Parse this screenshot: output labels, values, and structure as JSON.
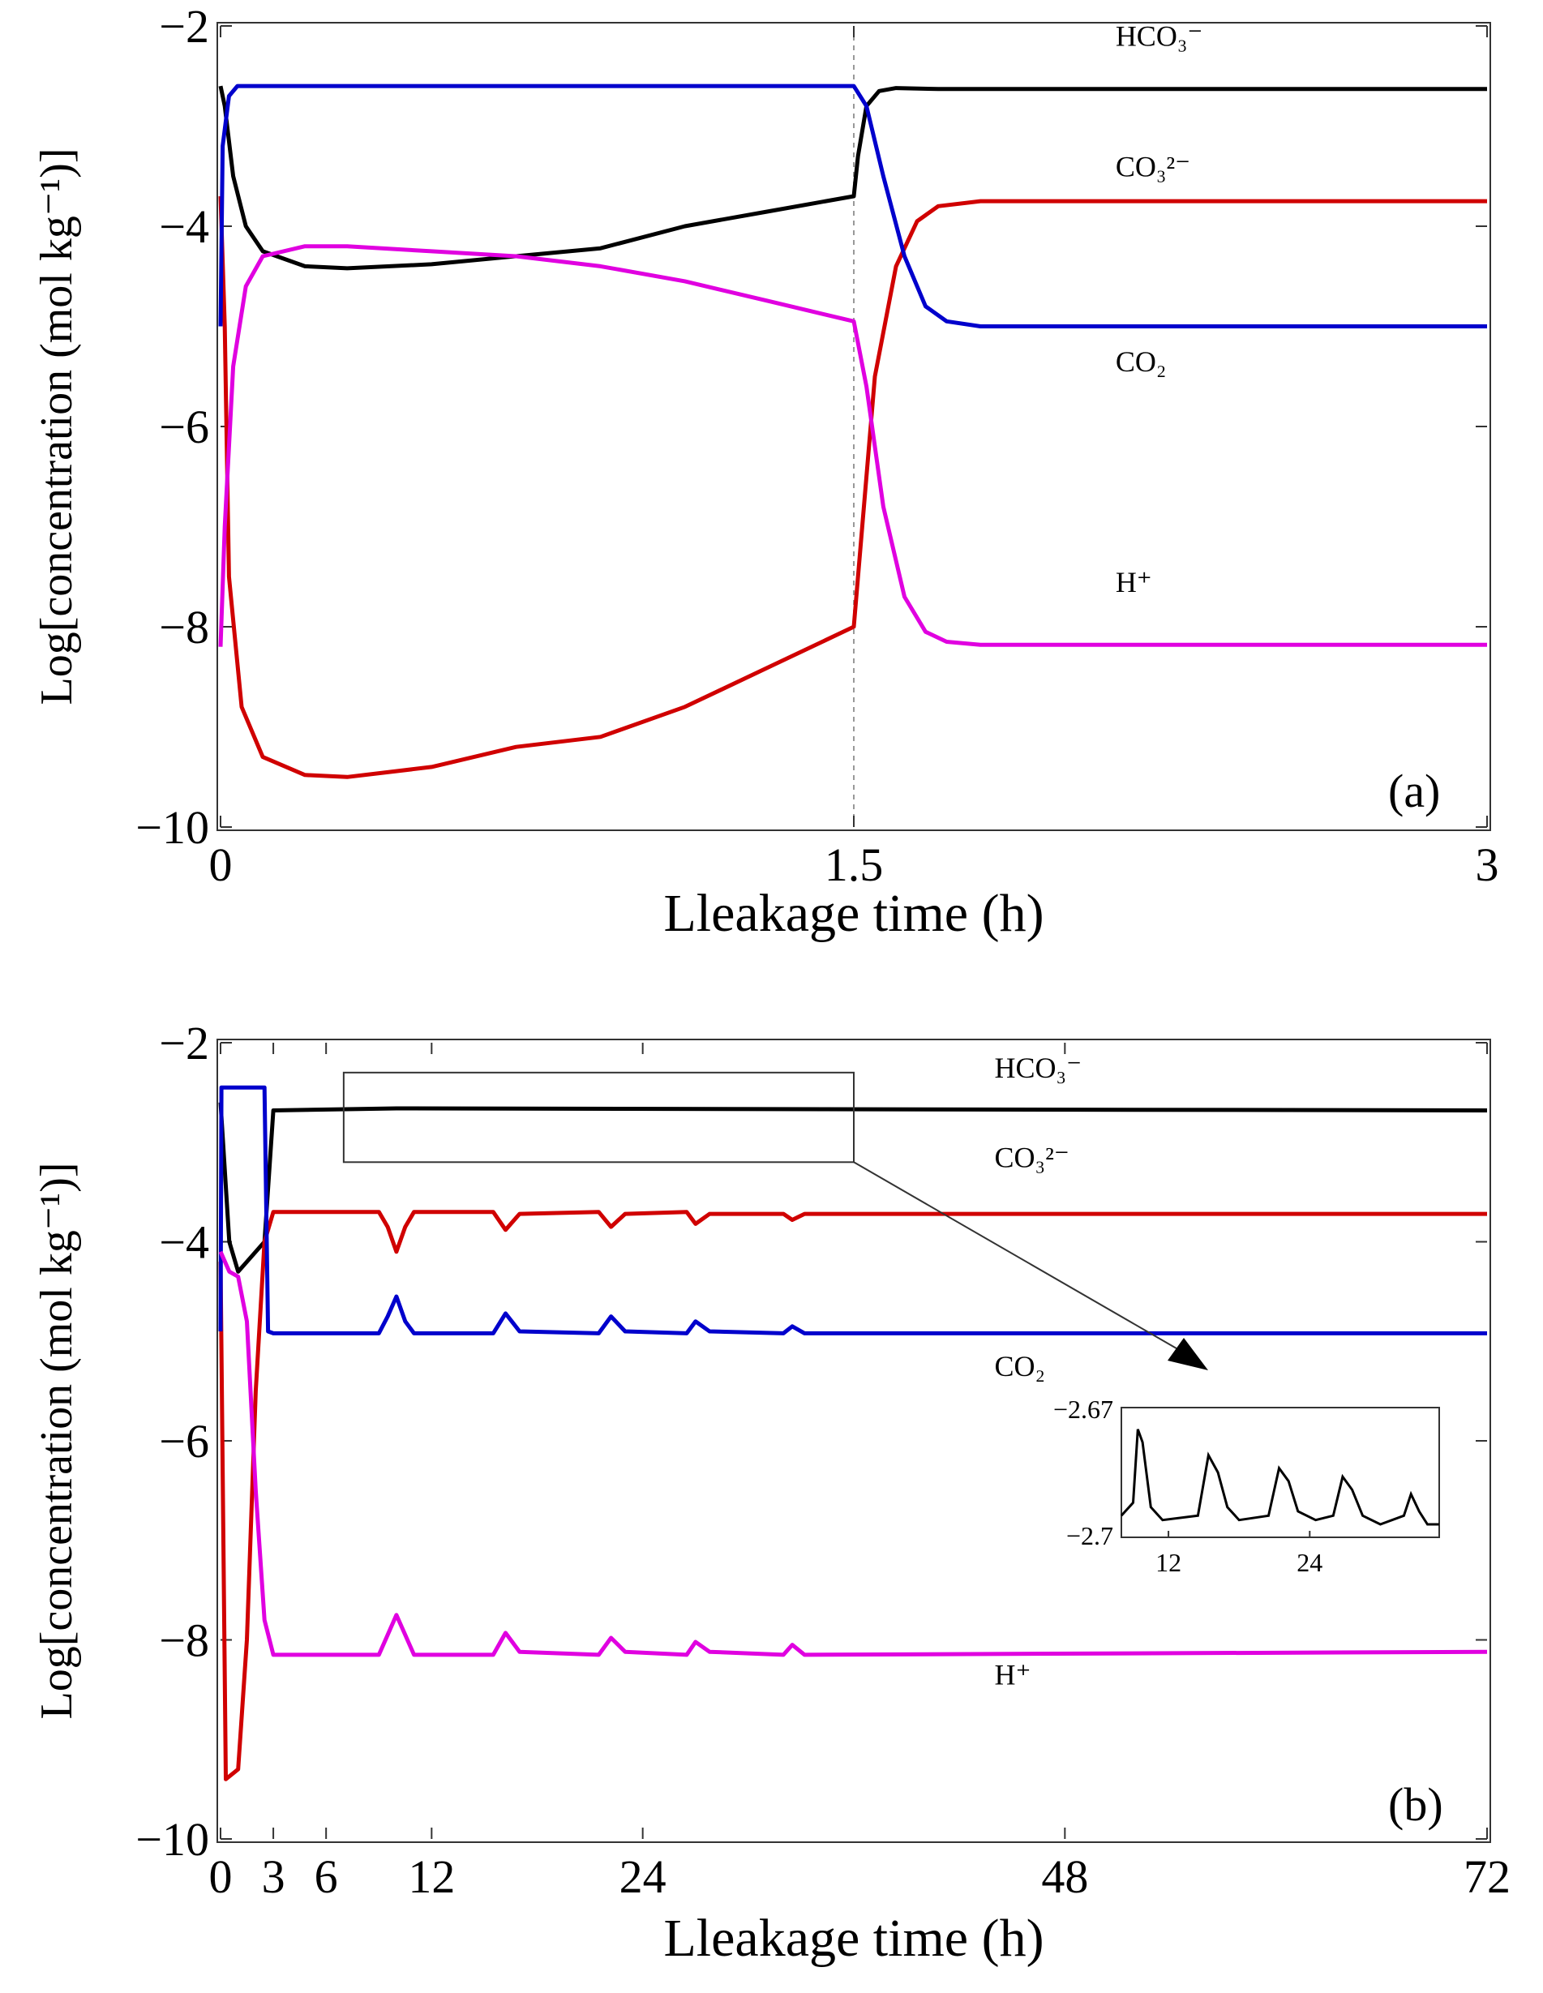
{
  "chart_data": [
    {
      "type": "line",
      "panel_label": "(a)",
      "xlabel": "Lleakage time (h)",
      "ylabel": "Log[concentration (mol kg⁻¹)]",
      "xlim": [
        0,
        3
      ],
      "ylim": [
        -10,
        -2
      ],
      "xticks": [
        "0",
        "1.5",
        "3"
      ],
      "yticks": [
        "-2",
        "-4",
        "-6",
        "-8",
        "-10"
      ],
      "vline_at": 1.5,
      "series": [
        {
          "name": "HCO3-",
          "label": "HCO₃⁻",
          "color": "#000000",
          "x": [
            0,
            0.01,
            0.03,
            0.06,
            0.1,
            0.2,
            0.3,
            0.5,
            0.7,
            0.9,
            1.1,
            1.3,
            1.5,
            1.51,
            1.53,
            1.56,
            1.6,
            1.7,
            2.0,
            2.5,
            3.0
          ],
          "y": [
            -2.6,
            -2.8,
            -3.5,
            -4.0,
            -4.25,
            -4.4,
            -4.42,
            -4.38,
            -4.3,
            -4.22,
            -4.0,
            -3.85,
            -3.7,
            -3.3,
            -2.8,
            -2.65,
            -2.62,
            -2.63,
            -2.63,
            -2.63,
            -2.63
          ]
        },
        {
          "name": "CO3 2-",
          "label": "CO₃²⁻",
          "color": "#d00000",
          "x": [
            0,
            0.01,
            0.02,
            0.05,
            0.1,
            0.2,
            0.3,
            0.5,
            0.7,
            0.9,
            1.1,
            1.3,
            1.5,
            1.52,
            1.55,
            1.6,
            1.65,
            1.7,
            1.8,
            2.0,
            2.5,
            3.0
          ],
          "y": [
            -3.7,
            -5.0,
            -7.5,
            -8.8,
            -9.3,
            -9.48,
            -9.5,
            -9.4,
            -9.2,
            -9.1,
            -8.8,
            -8.4,
            -8.0,
            -7.0,
            -5.5,
            -4.4,
            -3.95,
            -3.8,
            -3.75,
            -3.75,
            -3.75,
            -3.75
          ]
        },
        {
          "name": "CO2",
          "label": "CO₂",
          "color": "#0000cc",
          "x": [
            0,
            0.005,
            0.02,
            0.04,
            0.1,
            0.5,
            1.0,
            1.5,
            1.53,
            1.57,
            1.62,
            1.67,
            1.72,
            1.8,
            2.0,
            2.5,
            3.0
          ],
          "y": [
            -5.0,
            -3.2,
            -2.7,
            -2.6,
            -2.6,
            -2.6,
            -2.6,
            -2.6,
            -2.8,
            -3.5,
            -4.3,
            -4.8,
            -4.95,
            -5.0,
            -5.0,
            -5.0,
            -5.0
          ]
        },
        {
          "name": "H+",
          "label": "H⁺",
          "color": "#e000e0",
          "x": [
            0,
            0.01,
            0.03,
            0.06,
            0.1,
            0.2,
            0.3,
            0.5,
            0.7,
            0.9,
            1.1,
            1.3,
            1.5,
            1.53,
            1.57,
            1.62,
            1.67,
            1.72,
            1.8,
            2.0,
            2.5,
            3.0
          ],
          "y": [
            -8.2,
            -7.0,
            -5.4,
            -4.6,
            -4.3,
            -4.2,
            -4.2,
            -4.25,
            -4.3,
            -4.4,
            -4.55,
            -4.75,
            -4.95,
            -5.6,
            -6.8,
            -7.7,
            -8.05,
            -8.15,
            -8.18,
            -8.18,
            -8.18,
            -8.18
          ]
        }
      ],
      "annotations": [
        {
          "text": "HCO₃⁻",
          "x": 2.12,
          "y": -2.2
        },
        {
          "text": "CO₃²⁻",
          "x": 2.12,
          "y": -3.5
        },
        {
          "text": "CO₂",
          "x": 2.12,
          "y": -5.45
        },
        {
          "text": "H⁺",
          "x": 2.12,
          "y": -7.65
        }
      ]
    },
    {
      "type": "line",
      "panel_label": "(b)",
      "xlabel": "Lleakage time (h)",
      "ylabel": "Log[concentration (mol kg⁻¹)]",
      "xlim": [
        0,
        72
      ],
      "ylim": [
        -10,
        -2
      ],
      "xticks": [
        "0",
        "3",
        "6",
        "12",
        "24",
        "48",
        "72"
      ],
      "yticks": [
        "-2",
        "-4",
        "-6",
        "-8",
        "-10"
      ],
      "series": [
        {
          "name": "HCO3-",
          "label": "HCO₃⁻",
          "color": "#000000",
          "x": [
            0,
            0.5,
            1.0,
            1.5,
            2.5,
            3,
            10,
            72
          ],
          "y": [
            -2.6,
            -4.0,
            -4.3,
            -4.2,
            -4.0,
            -2.68,
            -2.66,
            -2.68
          ]
        },
        {
          "name": "CO3 2-",
          "label": "CO₃²⁻",
          "color": "#d00000",
          "x": [
            0,
            0.3,
            1.0,
            1.5,
            2.0,
            2.5,
            3,
            9.0,
            9.5,
            10.0,
            10.5,
            11.0,
            15.5,
            16.2,
            17.0,
            21.5,
            22.2,
            23.0,
            26.5,
            27.0,
            27.8,
            32.0,
            32.5,
            33.2,
            72
          ],
          "y": [
            -4.2,
            -9.4,
            -9.3,
            -8.0,
            -5.5,
            -4.0,
            -3.7,
            -3.7,
            -3.85,
            -4.1,
            -3.85,
            -3.7,
            -3.7,
            -3.88,
            -3.72,
            -3.7,
            -3.85,
            -3.72,
            -3.7,
            -3.82,
            -3.72,
            -3.72,
            -3.78,
            -3.72,
            -3.72
          ]
        },
        {
          "name": "CO2",
          "label": "CO₂",
          "color": "#0000cc",
          "x": [
            0,
            0.05,
            1.5,
            2.5,
            2.7,
            3,
            9.0,
            9.5,
            10.0,
            10.5,
            11.0,
            15.5,
            16.2,
            17.0,
            21.5,
            22.2,
            23.0,
            26.5,
            27.0,
            27.8,
            32.0,
            32.5,
            33.2,
            72
          ],
          "y": [
            -4.9,
            -2.45,
            -2.45,
            -2.45,
            -4.9,
            -4.92,
            -4.92,
            -4.75,
            -4.55,
            -4.8,
            -4.92,
            -4.92,
            -4.72,
            -4.9,
            -4.92,
            -4.75,
            -4.9,
            -4.92,
            -4.8,
            -4.9,
            -4.92,
            -4.85,
            -4.92,
            -4.92
          ]
        },
        {
          "name": "H+",
          "label": "H⁺",
          "color": "#e000e0",
          "x": [
            0,
            0.5,
            1.0,
            1.5,
            2.0,
            2.5,
            3,
            9.0,
            9.5,
            10.0,
            10.5,
            11.0,
            15.5,
            16.2,
            17.0,
            21.5,
            22.2,
            23.0,
            26.5,
            27.0,
            27.8,
            32.0,
            32.5,
            33.2,
            72
          ],
          "y": [
            -4.1,
            -4.3,
            -4.35,
            -4.8,
            -6.5,
            -7.8,
            -8.15,
            -8.15,
            -7.95,
            -7.75,
            -7.95,
            -8.15,
            -8.15,
            -7.93,
            -8.12,
            -8.15,
            -7.98,
            -8.12,
            -8.15,
            -8.02,
            -8.12,
            -8.15,
            -8.05,
            -8.15,
            -8.12
          ]
        }
      ],
      "annotations": [
        {
          "text": "HCO₃⁻",
          "x": 44,
          "y": -2.35
        },
        {
          "text": "CO₃²⁻",
          "x": 44,
          "y": -3.25
        },
        {
          "text": "CO₂",
          "x": 44,
          "y": -5.35
        },
        {
          "text": "H⁺",
          "x": 44,
          "y": -8.45
        }
      ],
      "highlight_box": {
        "x": [
          7,
          36
        ],
        "y": [
          -2.3,
          -3.2
        ]
      },
      "inset": {
        "xlim": [
          8,
          35
        ],
        "ylim": [
          -2.7,
          -2.67
        ],
        "xticks": [
          "12",
          "24"
        ],
        "yticks": [
          "-2.67",
          "-2.7"
        ],
        "series": {
          "color": "#000000",
          "x": [
            8,
            9.0,
            9.4,
            9.8,
            10.5,
            11.5,
            14.5,
            15.4,
            16.2,
            17.0,
            18.0,
            20.5,
            21.4,
            22.2,
            23.0,
            24.5,
            26.0,
            26.8,
            27.6,
            28.5,
            30.0,
            32.0,
            32.6,
            33.3,
            34.0,
            35
          ],
          "y": [
            -2.695,
            -2.692,
            -2.675,
            -2.678,
            -2.693,
            -2.696,
            -2.695,
            -2.681,
            -2.685,
            -2.693,
            -2.696,
            -2.695,
            -2.684,
            -2.687,
            -2.694,
            -2.696,
            -2.695,
            -2.686,
            -2.689,
            -2.695,
            -2.697,
            -2.695,
            -2.69,
            -2.694,
            -2.697,
            -2.697
          ]
        }
      }
    }
  ]
}
